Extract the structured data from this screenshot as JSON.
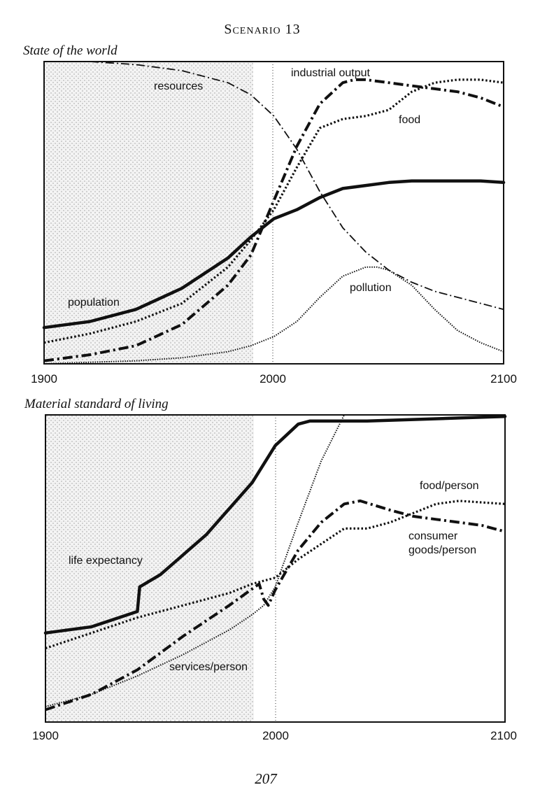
{
  "page": {
    "scenario_title": "Scenario 13",
    "page_number": "207"
  },
  "chart_data": [
    {
      "type": "line",
      "title": "State of the world",
      "xlabel": "",
      "ylabel": "",
      "xlim": [
        1900,
        2100
      ],
      "ylim": [
        0,
        100
      ],
      "x_ticks": [
        "1900",
        "2000",
        "2100"
      ],
      "shaded_region": [
        1900,
        1990
      ],
      "reference_line_x": 2000,
      "grid": false,
      "series": [
        {
          "name": "resources",
          "style": "dashdot-thin",
          "x": [
            1900,
            1920,
            1940,
            1960,
            1980,
            1990,
            2000,
            2010,
            2020,
            2030,
            2040,
            2050,
            2060,
            2070,
            2080,
            2090,
            2100
          ],
          "y": [
            100,
            100,
            99,
            97,
            93,
            89,
            82,
            71,
            57,
            45,
            37,
            31,
            27,
            24,
            22,
            20,
            18
          ]
        },
        {
          "name": "industrial output",
          "style": "dashdot-thick",
          "x": [
            1900,
            1920,
            1940,
            1960,
            1980,
            1990,
            2000,
            2010,
            2020,
            2030,
            2035,
            2040,
            2050,
            2060,
            2070,
            2080,
            2090,
            2100
          ],
          "y": [
            1,
            3,
            6,
            13,
            26,
            36,
            54,
            72,
            86,
            93,
            94,
            94,
            93,
            92,
            91,
            90,
            88,
            85
          ]
        },
        {
          "name": "food",
          "style": "dotted-thick",
          "x": [
            1900,
            1920,
            1940,
            1960,
            1980,
            1990,
            2000,
            2010,
            2020,
            2030,
            2040,
            2050,
            2060,
            2070,
            2080,
            2090,
            2100
          ],
          "y": [
            7,
            10,
            14,
            20,
            32,
            41,
            51,
            65,
            78,
            81,
            82,
            84,
            90,
            93,
            94,
            94,
            93
          ]
        },
        {
          "name": "population",
          "style": "solid-thick",
          "x": [
            1900,
            1920,
            1940,
            1960,
            1980,
            1990,
            2000,
            2010,
            2020,
            2030,
            2040,
            2050,
            2060,
            2070,
            2080,
            2090,
            2100
          ],
          "y": [
            12,
            14,
            18,
            25,
            35,
            42,
            48,
            51,
            55,
            58,
            59,
            60,
            60.5,
            60.5,
            60.5,
            60.5,
            60
          ]
        },
        {
          "name": "pollution",
          "style": "dotted-thin",
          "x": [
            1900,
            1920,
            1940,
            1960,
            1980,
            1990,
            2000,
            2010,
            2020,
            2030,
            2040,
            2045,
            2050,
            2060,
            2070,
            2080,
            2090,
            2100
          ],
          "y": [
            0,
            0.5,
            1,
            2,
            4,
            6,
            9,
            14,
            22,
            29,
            32,
            32,
            31,
            26,
            18,
            11,
            7,
            4
          ]
        }
      ],
      "labels": [
        "resources",
        "industrial output",
        "food",
        "population",
        "pollution"
      ]
    },
    {
      "type": "line",
      "title": "Material standard of living",
      "xlabel": "",
      "ylabel": "",
      "xlim": [
        1900,
        2100
      ],
      "ylim": [
        0,
        100
      ],
      "x_ticks": [
        "1900",
        "2000",
        "2100"
      ],
      "shaded_region": [
        1900,
        1990
      ],
      "reference_line_x": 2000,
      "grid": false,
      "series": [
        {
          "name": "life expectancy",
          "style": "solid-thick",
          "x": [
            1900,
            1920,
            1940,
            1941,
            1950,
            1970,
            1990,
            2000,
            2010,
            2015,
            2020,
            2040,
            2060,
            2080,
            2100
          ],
          "y": [
            29,
            31,
            36,
            44,
            48,
            61,
            78,
            90,
            97,
            98,
            98,
            98,
            98.5,
            99,
            99.5
          ]
        },
        {
          "name": "food/person",
          "style": "dotted-thick",
          "x": [
            1900,
            1920,
            1940,
            1960,
            1980,
            1990,
            2000,
            2010,
            2020,
            2030,
            2040,
            2050,
            2060,
            2070,
            2080,
            2090,
            2100
          ],
          "y": [
            24,
            29,
            34,
            38,
            42,
            45,
            47,
            53,
            58,
            63,
            63,
            65,
            68,
            71,
            72,
            71.5,
            71
          ]
        },
        {
          "name": "consumer goods/person",
          "style": "dashdot-thick",
          "x": [
            1900,
            1920,
            1940,
            1960,
            1980,
            1993,
            1995,
            1997,
            2000,
            2010,
            2020,
            2030,
            2037,
            2050,
            2060,
            2070,
            2080,
            2090,
            2100
          ],
          "y": [
            4,
            9,
            17,
            28,
            38,
            45,
            40,
            38,
            43,
            56,
            65,
            71,
            72,
            69,
            67,
            66,
            65,
            64,
            62
          ]
        },
        {
          "name": "services/person",
          "style": "dotted-thin",
          "x": [
            1900,
            1920,
            1940,
            1960,
            1980,
            1990,
            1995,
            2000,
            2010,
            2020,
            2030
          ],
          "y": [
            5,
            9,
            15,
            22,
            30,
            35,
            38,
            44,
            65,
            85,
            100
          ]
        }
      ],
      "labels": [
        "life expectancy",
        "food/person",
        "consumer goods/person",
        "services/person"
      ]
    }
  ]
}
